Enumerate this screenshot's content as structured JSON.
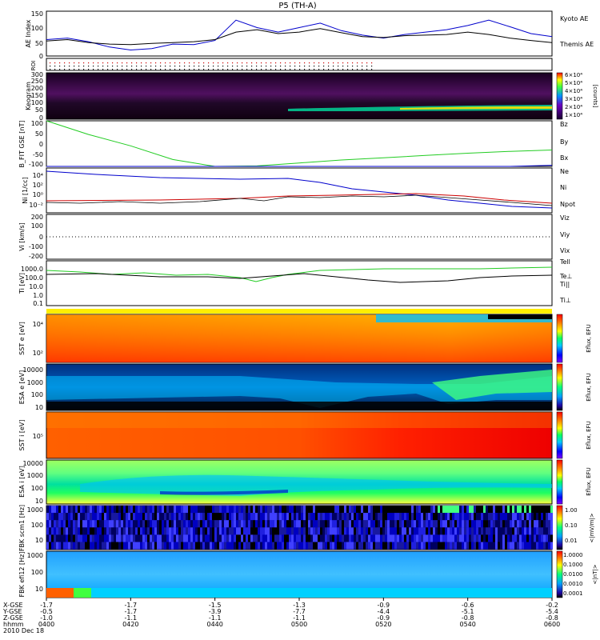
{
  "title": "P5 (TH-A)",
  "x_ticks": [
    "0400",
    "0420",
    "0440",
    "0500",
    "0520",
    "0540",
    "0600"
  ],
  "ephem": {
    "row_labels": [
      "X-GSE",
      "Y-GSE",
      "Z-GSE",
      "hhmm",
      "2010 Dec 18"
    ],
    "x": [
      "-1.7",
      "-1.7",
      "-1.5",
      "-1.3",
      "-0.9",
      "-0.6",
      "-0.2"
    ],
    "y": [
      "-0.5",
      "-1.7",
      "-3.9",
      "-7.7",
      "-4.4",
      "-5.1",
      "-5.4"
    ],
    "z": [
      "-1.0",
      "-1.1",
      "-1.1",
      "-1.1",
      "-0.9",
      "-0.8",
      "-0.8"
    ]
  },
  "colors": {
    "kyoto": "#0000cc",
    "themis": "#000000",
    "green": "#22cc22",
    "red": "#cc0000",
    "blue": "#0000cc"
  },
  "chart_data": [
    {
      "type": "line",
      "panel": "ae",
      "ylabel": "AE Index",
      "ylim": [
        0,
        150
      ],
      "yticks": [
        "0",
        "50",
        "100",
        "150"
      ],
      "legend": [
        "Kyoto AE",
        "Themis AE"
      ],
      "x": [
        0,
        5,
        10,
        15,
        20,
        25,
        30,
        35,
        40,
        45,
        50,
        55,
        60,
        65,
        70,
        75,
        80,
        85,
        90,
        95,
        100,
        105,
        110,
        115,
        120
      ],
      "series": [
        {
          "name": "Kyoto AE",
          "values": [
            55,
            60,
            48,
            30,
            20,
            25,
            40,
            38,
            52,
            120,
            95,
            80,
            95,
            110,
            85,
            70,
            60,
            72,
            80,
            88,
            102,
            120,
            98,
            75,
            65
          ]
        },
        {
          "name": "Themis AE",
          "values": [
            50,
            55,
            45,
            40,
            38,
            42,
            45,
            48,
            55,
            80,
            88,
            75,
            80,
            92,
            78,
            65,
            62,
            68,
            70,
            72,
            80,
            72,
            60,
            52,
            45
          ]
        }
      ]
    },
    {
      "type": "heatmap",
      "panel": "roi",
      "ylabel": "ROI"
    },
    {
      "type": "heatmap",
      "panel": "keogram",
      "ylabel": "Keogram",
      "yticks": [
        "0",
        "50",
        "100",
        "150",
        "200",
        "250",
        "300"
      ],
      "colorbar_ticks": [
        "1×10⁴",
        "2×10⁴",
        "3×10⁴",
        "4×10⁴",
        "5×10⁴",
        "6×10⁴"
      ],
      "colorbar_label": "[counts]"
    },
    {
      "type": "line",
      "panel": "bfit",
      "ylabel": "B_FIT GSE [nT]",
      "ylim": [
        -100,
        100
      ],
      "yticks": [
        "-100",
        "-50",
        "0",
        "50",
        "100"
      ],
      "legend": [
        "Bz",
        "By",
        "Bx"
      ],
      "x": [
        0,
        10,
        20,
        30,
        40,
        50,
        60,
        70,
        80,
        90,
        100,
        110,
        120
      ],
      "series": [
        {
          "name": "By",
          "values": [
            105,
            40,
            -10,
            -70,
            -100,
            -98,
            -85,
            -72,
            -62,
            -52,
            -42,
            -34,
            -28
          ]
        },
        {
          "name": "Bx",
          "values": [
            -100,
            -100,
            -100,
            -100,
            -100,
            -100,
            -100,
            -100,
            -100,
            -100,
            -100,
            -100,
            -95
          ]
        }
      ]
    },
    {
      "type": "line",
      "panel": "ni",
      "ylabel": "Ni [1/cc]",
      "yticks": [
        "10⁻²",
        "10⁰",
        "10²",
        "10⁴"
      ],
      "legend": [
        "Ne",
        "Ni",
        "Npot"
      ]
    },
    {
      "type": "line",
      "panel": "vi",
      "ylabel": "Vi [km/s]",
      "ylim": [
        -300,
        300
      ],
      "yticks": [
        "-200",
        "-100",
        "0",
        "100",
        "200"
      ],
      "legend": [
        "Viz",
        "Viy",
        "Vix"
      ]
    },
    {
      "type": "line",
      "panel": "ti",
      "ylabel": "Ti [eV]",
      "yticks": [
        "0.1",
        "1.0",
        "10.0",
        "100.0",
        "1000.0"
      ],
      "legend": [
        "Tell",
        "Te⊥",
        "Ti||",
        "Ti⊥"
      ]
    },
    {
      "type": "heatmap",
      "panel": "sst_e",
      "ylabel": "SST e [eV]",
      "yticks": [
        "10⁴",
        "10²"
      ],
      "colorbar_label": "Eflux, EFU"
    },
    {
      "type": "heatmap",
      "panel": "esa_e",
      "ylabel": "ESA e [eV]",
      "yticks": [
        "10000",
        "1000",
        "100",
        "10"
      ],
      "colorbar_label": "Eflux, EFU"
    },
    {
      "type": "heatmap",
      "panel": "sst_i",
      "ylabel": "SST i [eV]",
      "yticks": [
        "10⁵"
      ],
      "colorbar_label": "Eflux, EFU"
    },
    {
      "type": "heatmap",
      "panel": "esa_i",
      "ylabel": "ESA i [eV]",
      "yticks": [
        "10000",
        "1000",
        "100",
        "10"
      ],
      "colorbar_label": "Eflux, EFU"
    },
    {
      "type": "heatmap",
      "panel": "fbk_scm",
      "ylabel": "FBK scm1 [Hz]",
      "yticks": [
        "1000",
        "100",
        "10"
      ],
      "colorbar_ticks": [
        "0.01",
        "0.10",
        "1.00"
      ],
      "colorbar_label": "<|mV/m|>"
    },
    {
      "type": "heatmap",
      "panel": "fbk_efi",
      "ylabel": "FBK efi12 [Hz]",
      "yticks": [
        "1000",
        "100",
        "10"
      ],
      "colorbar_ticks": [
        "0.0001",
        "0.0010",
        "0.0100",
        "0.1000",
        "1.0000"
      ],
      "colorbar_label": "<|nT|>"
    }
  ]
}
